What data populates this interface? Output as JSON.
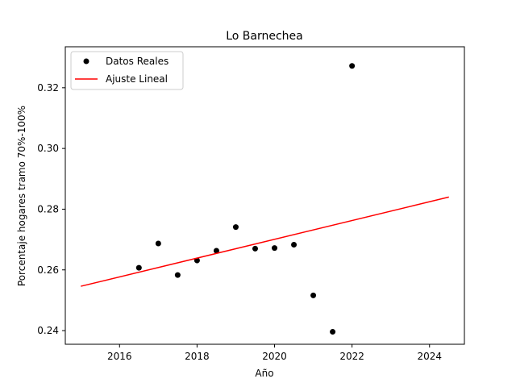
{
  "chart_data": {
    "type": "scatter",
    "title": "Lo Barnechea",
    "xlabel": "Año",
    "ylabel": "Porcentaje hogares tramo 70%-100%",
    "xlim": [
      2014.6,
      2024.9
    ],
    "ylim": [
      0.2355,
      0.3335
    ],
    "x_ticks": [
      2016,
      2018,
      2020,
      2022,
      2024
    ],
    "y_ticks": [
      0.24,
      0.26,
      0.28,
      0.3,
      0.32
    ],
    "x_tick_labels": [
      "2016",
      "2018",
      "2020",
      "2022",
      "2024"
    ],
    "y_tick_labels": [
      "0.24",
      "0.26",
      "0.28",
      "0.30",
      "0.32"
    ],
    "grid": false,
    "legend_position": "top-left",
    "series": [
      {
        "name": "Datos Reales",
        "kind": "scatter",
        "color": "#000000",
        "points": [
          {
            "x": 2016.5,
            "y": 0.2607
          },
          {
            "x": 2017.0,
            "y": 0.2687
          },
          {
            "x": 2017.5,
            "y": 0.2583
          },
          {
            "x": 2018.0,
            "y": 0.2631
          },
          {
            "x": 2018.5,
            "y": 0.2663
          },
          {
            "x": 2019.0,
            "y": 0.2741
          },
          {
            "x": 2019.5,
            "y": 0.267
          },
          {
            "x": 2020.0,
            "y": 0.2672
          },
          {
            "x": 2020.5,
            "y": 0.2683
          },
          {
            "x": 2021.0,
            "y": 0.2516
          },
          {
            "x": 2021.5,
            "y": 0.2396
          },
          {
            "x": 2022.0,
            "y": 0.3272
          }
        ]
      },
      {
        "name": "Ajuste Lineal",
        "kind": "line",
        "color": "#ff0000",
        "points": [
          {
            "x": 2015.0,
            "y": 0.2546
          },
          {
            "x": 2024.5,
            "y": 0.284
          }
        ]
      }
    ]
  }
}
